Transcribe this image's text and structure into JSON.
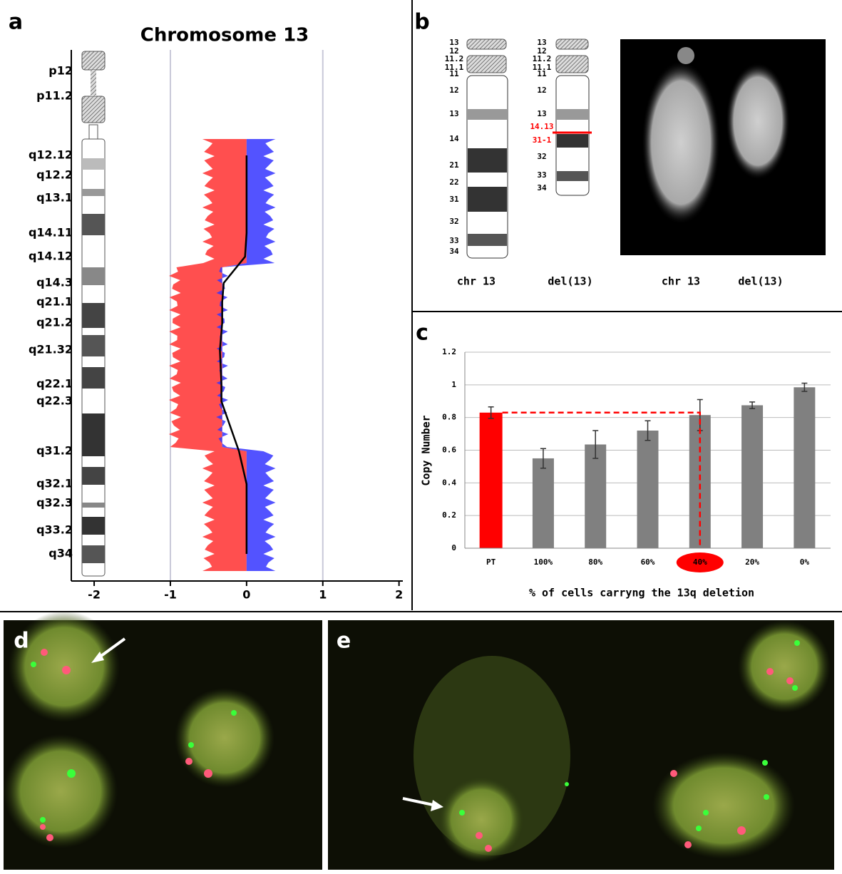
{
  "panel_labels": [
    "a",
    "b",
    "c",
    "d",
    "e"
  ],
  "chart_data": [
    {
      "type": "line",
      "title": "Chromosome 13",
      "orientation": "horizontal",
      "categories": [
        "p12",
        "p11.2",
        "q12.12",
        "q12.2",
        "q13.1",
        "q14.11",
        "q14.12",
        "q14.3",
        "q21.1",
        "q21.2",
        "q21.32",
        "q22.1",
        "q22.3",
        "q31.2",
        "q32.1",
        "q32.3",
        "q33.2",
        "q34"
      ],
      "values": [
        null,
        null,
        0,
        0,
        0,
        0,
        -0.02,
        -0.3,
        -0.32,
        -0.32,
        -0.35,
        -0.33,
        -0.33,
        -0.1,
        0,
        0,
        0,
        0
      ],
      "color": "#000000",
      "xlim": [
        -2.3,
        2.05
      ],
      "xticks": [
        -2,
        -1,
        0,
        1,
        2
      ],
      "grid": true
    },
    {
      "type": "bar",
      "xlabel": "% of cells carryng the 13q deletion",
      "ylabel": "Copy Number",
      "categories": [
        "PT",
        "100%",
        "80%",
        "60%",
        "40%",
        "20%",
        "0%"
      ],
      "series": [
        {
          "values": [
            0.83,
            0.55,
            0.635,
            0.72,
            0.815,
            0.875,
            0.985
          ],
          "errors": [
            0.035,
            0.06,
            0.085,
            0.06,
            0.095,
            0.02,
            0.025
          ],
          "colors": [
            "#ff0000",
            "#808080",
            "#808080",
            "#808080",
            "#808080",
            "#808080",
            "#808080"
          ]
        }
      ],
      "highlight": "40%",
      "ylim": [
        0,
        1.2
      ],
      "yticks": [
        0,
        0.2,
        0.4,
        0.6,
        0.8,
        1,
        1.2
      ],
      "grid": true
    }
  ],
  "panel_b": {
    "chr13_bands": [
      "13",
      "12",
      "11.2",
      "11.1",
      "11",
      "12",
      "13",
      "14",
      "21",
      "22",
      "31",
      "32",
      "33",
      "34"
    ],
    "del13_bands": [
      "13",
      "12",
      "11.2",
      "11.1",
      "11",
      "12",
      "13",
      "14.13",
      "31-1",
      "32",
      "33",
      "34"
    ],
    "captions": [
      "chr 13",
      "del(13)",
      "chr 13",
      "del(13)"
    ]
  }
}
